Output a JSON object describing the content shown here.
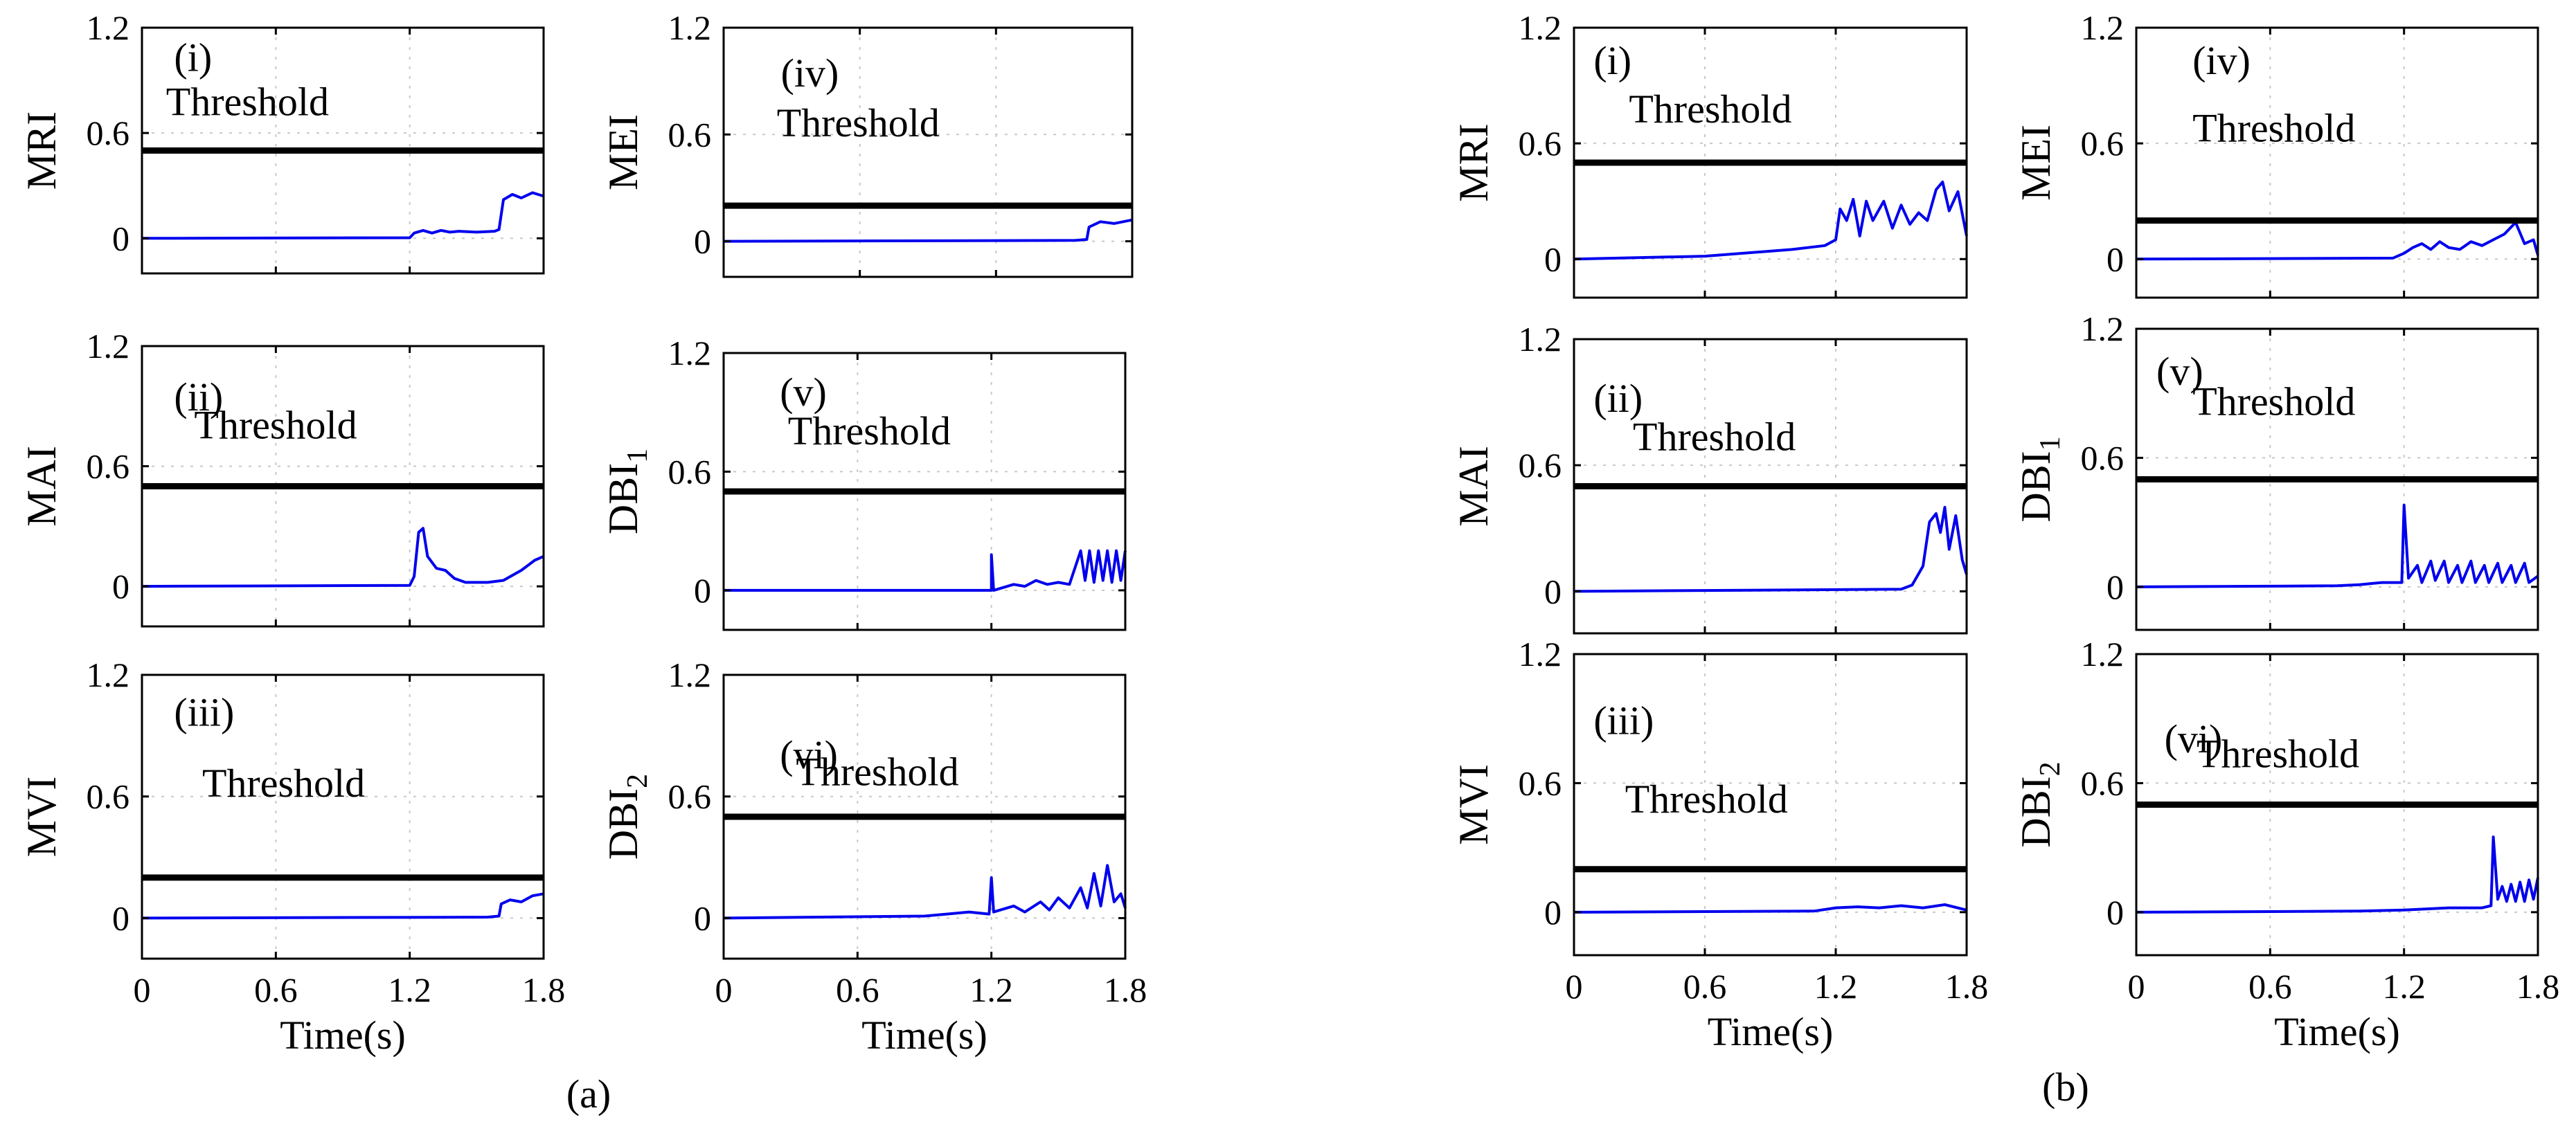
{
  "chart_data": [
    {
      "group": "(a)",
      "panels": [
        {
          "id": "a-i",
          "label": "(i)",
          "ylabel": "MRI",
          "sub": "",
          "threshold": 0.5,
          "threshold_label": "Threshold",
          "series": "a_mri"
        },
        {
          "id": "a-ii",
          "label": "(ii)",
          "ylabel": "MAI",
          "sub": "",
          "threshold": 0.5,
          "threshold_label": "Threshold",
          "series": "a_mai"
        },
        {
          "id": "a-iii",
          "label": "(iii)",
          "ylabel": "MVI",
          "sub": "",
          "threshold": 0.2,
          "threshold_label": "Threshold",
          "series": "a_mvi"
        },
        {
          "id": "a-iv",
          "label": "(iv)",
          "ylabel": "MEI",
          "sub": "",
          "threshold": 0.2,
          "threshold_label": "Threshold",
          "series": "a_mei"
        },
        {
          "id": "a-v",
          "label": "(v)",
          "ylabel": "DBI",
          "sub": "1",
          "threshold": 0.5,
          "threshold_label": "Threshold",
          "series": "a_dbi1"
        },
        {
          "id": "a-vi",
          "label": "(vi)",
          "ylabel": "DBI",
          "sub": "2",
          "threshold": 0.5,
          "threshold_label": "Threshold",
          "series": "a_dbi2"
        }
      ]
    },
    {
      "group": "(b)",
      "panels": [
        {
          "id": "b-i",
          "label": "(i)",
          "ylabel": "MRI",
          "sub": "",
          "threshold": 0.5,
          "threshold_label": "Threshold",
          "series": "b_mri"
        },
        {
          "id": "b-ii",
          "label": "(ii)",
          "ylabel": "MAI",
          "sub": "",
          "threshold": 0.5,
          "threshold_label": "Threshold",
          "series": "b_mai"
        },
        {
          "id": "b-iii",
          "label": "(iii)",
          "ylabel": "MVI",
          "sub": "",
          "threshold": 0.2,
          "threshold_label": "Threshold",
          "series": "b_mvi"
        },
        {
          "id": "b-iv",
          "label": "(iv)",
          "ylabel": "MEI",
          "sub": "",
          "threshold": 0.2,
          "threshold_label": "Threshold",
          "series": "b_mei"
        },
        {
          "id": "b-v",
          "label": "(v)",
          "ylabel": "DBI",
          "sub": "1",
          "threshold": 0.5,
          "threshold_label": "Threshold",
          "series": "b_dbi1"
        },
        {
          "id": "b-vi",
          "label": "(vi)",
          "ylabel": "DBI",
          "sub": "2",
          "threshold": 0.5,
          "threshold_label": "Threshold",
          "series": "b_dbi2"
        }
      ]
    }
  ],
  "axes": {
    "type": "line",
    "xlim": [
      0,
      1.8
    ],
    "ylim": [
      -0.2,
      1.2
    ],
    "xticks": [
      "0",
      "0.6",
      "1.2",
      "1.8"
    ],
    "yticks": [
      "0",
      "0.6",
      "1.2"
    ],
    "xlabel": "Time(s)",
    "grid": true,
    "line_color": "#0000ee",
    "threshold_color": "#000000"
  },
  "series_data": {
    "a_mri": [
      [
        0,
        0
      ],
      [
        1.2,
        0.003
      ],
      [
        1.22,
        0.03
      ],
      [
        1.26,
        0.045
      ],
      [
        1.3,
        0.03
      ],
      [
        1.34,
        0.045
      ],
      [
        1.38,
        0.035
      ],
      [
        1.42,
        0.04
      ],
      [
        1.5,
        0.035
      ],
      [
        1.58,
        0.04
      ],
      [
        1.6,
        0.05
      ],
      [
        1.62,
        0.22
      ],
      [
        1.66,
        0.25
      ],
      [
        1.7,
        0.23
      ],
      [
        1.75,
        0.26
      ],
      [
        1.8,
        0.24
      ]
    ],
    "a_mai": [
      [
        0,
        0
      ],
      [
        1.2,
        0.005
      ],
      [
        1.22,
        0.05
      ],
      [
        1.24,
        0.27
      ],
      [
        1.26,
        0.29
      ],
      [
        1.28,
        0.15
      ],
      [
        1.32,
        0.09
      ],
      [
        1.36,
        0.08
      ],
      [
        1.4,
        0.04
      ],
      [
        1.45,
        0.02
      ],
      [
        1.55,
        0.02
      ],
      [
        1.62,
        0.03
      ],
      [
        1.7,
        0.08
      ],
      [
        1.76,
        0.13
      ],
      [
        1.8,
        0.15
      ]
    ],
    "a_mvi": [
      [
        0,
        0
      ],
      [
        1.55,
        0.005
      ],
      [
        1.6,
        0.01
      ],
      [
        1.61,
        0.07
      ],
      [
        1.65,
        0.09
      ],
      [
        1.7,
        0.08
      ],
      [
        1.75,
        0.11
      ],
      [
        1.8,
        0.12
      ]
    ],
    "a_mei": [
      [
        0,
        0
      ],
      [
        1.55,
        0.005
      ],
      [
        1.6,
        0.01
      ],
      [
        1.61,
        0.08
      ],
      [
        1.66,
        0.11
      ],
      [
        1.72,
        0.1
      ],
      [
        1.8,
        0.12
      ]
    ],
    "a_dbi1": [
      [
        0,
        0
      ],
      [
        1.2,
        0
      ],
      [
        1.2,
        0.18
      ],
      [
        1.21,
        0
      ],
      [
        1.3,
        0.03
      ],
      [
        1.35,
        0.02
      ],
      [
        1.4,
        0.05
      ],
      [
        1.45,
        0.03
      ],
      [
        1.5,
        0.04
      ],
      [
        1.55,
        0.03
      ],
      [
        1.6,
        0.2
      ],
      [
        1.62,
        0.05
      ],
      [
        1.64,
        0.2
      ],
      [
        1.66,
        0.04
      ],
      [
        1.68,
        0.2
      ],
      [
        1.7,
        0.05
      ],
      [
        1.72,
        0.2
      ],
      [
        1.74,
        0.04
      ],
      [
        1.76,
        0.2
      ],
      [
        1.78,
        0.05
      ],
      [
        1.8,
        0.2
      ]
    ],
    "a_dbi2": [
      [
        0,
        0
      ],
      [
        0.9,
        0.01
      ],
      [
        1.0,
        0.02
      ],
      [
        1.1,
        0.03
      ],
      [
        1.19,
        0.02
      ],
      [
        1.2,
        0.2
      ],
      [
        1.21,
        0.03
      ],
      [
        1.3,
        0.06
      ],
      [
        1.35,
        0.03
      ],
      [
        1.42,
        0.08
      ],
      [
        1.46,
        0.04
      ],
      [
        1.5,
        0.1
      ],
      [
        1.55,
        0.05
      ],
      [
        1.6,
        0.15
      ],
      [
        1.63,
        0.05
      ],
      [
        1.66,
        0.22
      ],
      [
        1.69,
        0.06
      ],
      [
        1.72,
        0.26
      ],
      [
        1.75,
        0.08
      ],
      [
        1.78,
        0.12
      ],
      [
        1.8,
        0.05
      ]
    ],
    "b_mri": [
      [
        0,
        0
      ],
      [
        0.6,
        0.015
      ],
      [
        1.0,
        0.05
      ],
      [
        1.15,
        0.07
      ],
      [
        1.2,
        0.1
      ],
      [
        1.22,
        0.26
      ],
      [
        1.25,
        0.2
      ],
      [
        1.28,
        0.31
      ],
      [
        1.31,
        0.12
      ],
      [
        1.34,
        0.3
      ],
      [
        1.37,
        0.2
      ],
      [
        1.42,
        0.3
      ],
      [
        1.46,
        0.16
      ],
      [
        1.5,
        0.28
      ],
      [
        1.54,
        0.18
      ],
      [
        1.58,
        0.24
      ],
      [
        1.62,
        0.2
      ],
      [
        1.66,
        0.36
      ],
      [
        1.69,
        0.4
      ],
      [
        1.72,
        0.25
      ],
      [
        1.76,
        0.35
      ],
      [
        1.8,
        0.12
      ]
    ],
    "b_mai": [
      [
        0,
        0
      ],
      [
        1.5,
        0.01
      ],
      [
        1.55,
        0.03
      ],
      [
        1.6,
        0.12
      ],
      [
        1.63,
        0.33
      ],
      [
        1.66,
        0.37
      ],
      [
        1.68,
        0.28
      ],
      [
        1.7,
        0.4
      ],
      [
        1.72,
        0.2
      ],
      [
        1.75,
        0.36
      ],
      [
        1.78,
        0.15
      ],
      [
        1.8,
        0.08
      ]
    ],
    "b_mvi": [
      [
        0,
        0
      ],
      [
        1.1,
        0.005
      ],
      [
        1.2,
        0.02
      ],
      [
        1.3,
        0.025
      ],
      [
        1.4,
        0.02
      ],
      [
        1.5,
        0.03
      ],
      [
        1.6,
        0.02
      ],
      [
        1.7,
        0.035
      ],
      [
        1.8,
        0.01
      ]
    ],
    "b_mei": [
      [
        0,
        0
      ],
      [
        1.15,
        0.005
      ],
      [
        1.2,
        0.03
      ],
      [
        1.24,
        0.06
      ],
      [
        1.28,
        0.08
      ],
      [
        1.32,
        0.05
      ],
      [
        1.36,
        0.09
      ],
      [
        1.4,
        0.06
      ],
      [
        1.45,
        0.05
      ],
      [
        1.5,
        0.09
      ],
      [
        1.55,
        0.07
      ],
      [
        1.6,
        0.1
      ],
      [
        1.65,
        0.13
      ],
      [
        1.7,
        0.19
      ],
      [
        1.74,
        0.08
      ],
      [
        1.78,
        0.1
      ],
      [
        1.8,
        0.02
      ]
    ],
    "b_dbi1": [
      [
        0,
        0
      ],
      [
        0.9,
        0.005
      ],
      [
        1.0,
        0.01
      ],
      [
        1.1,
        0.02
      ],
      [
        1.19,
        0.02
      ],
      [
        1.2,
        0.38
      ],
      [
        1.22,
        0.04
      ],
      [
        1.26,
        0.1
      ],
      [
        1.28,
        0.02
      ],
      [
        1.32,
        0.12
      ],
      [
        1.34,
        0.03
      ],
      [
        1.38,
        0.12
      ],
      [
        1.4,
        0.02
      ],
      [
        1.44,
        0.1
      ],
      [
        1.46,
        0.02
      ],
      [
        1.5,
        0.12
      ],
      [
        1.52,
        0.02
      ],
      [
        1.56,
        0.1
      ],
      [
        1.58,
        0.02
      ],
      [
        1.62,
        0.11
      ],
      [
        1.64,
        0.02
      ],
      [
        1.68,
        0.1
      ],
      [
        1.7,
        0.02
      ],
      [
        1.74,
        0.11
      ],
      [
        1.76,
        0.02
      ],
      [
        1.8,
        0.05
      ]
    ],
    "b_dbi2": [
      [
        0,
        0
      ],
      [
        1.0,
        0.005
      ],
      [
        1.2,
        0.01
      ],
      [
        1.4,
        0.02
      ],
      [
        1.55,
        0.02
      ],
      [
        1.59,
        0.03
      ],
      [
        1.6,
        0.35
      ],
      [
        1.62,
        0.06
      ],
      [
        1.64,
        0.12
      ],
      [
        1.66,
        0.05
      ],
      [
        1.68,
        0.13
      ],
      [
        1.7,
        0.05
      ],
      [
        1.72,
        0.14
      ],
      [
        1.74,
        0.05
      ],
      [
        1.76,
        0.15
      ],
      [
        1.78,
        0.06
      ],
      [
        1.8,
        0.16
      ]
    ]
  }
}
